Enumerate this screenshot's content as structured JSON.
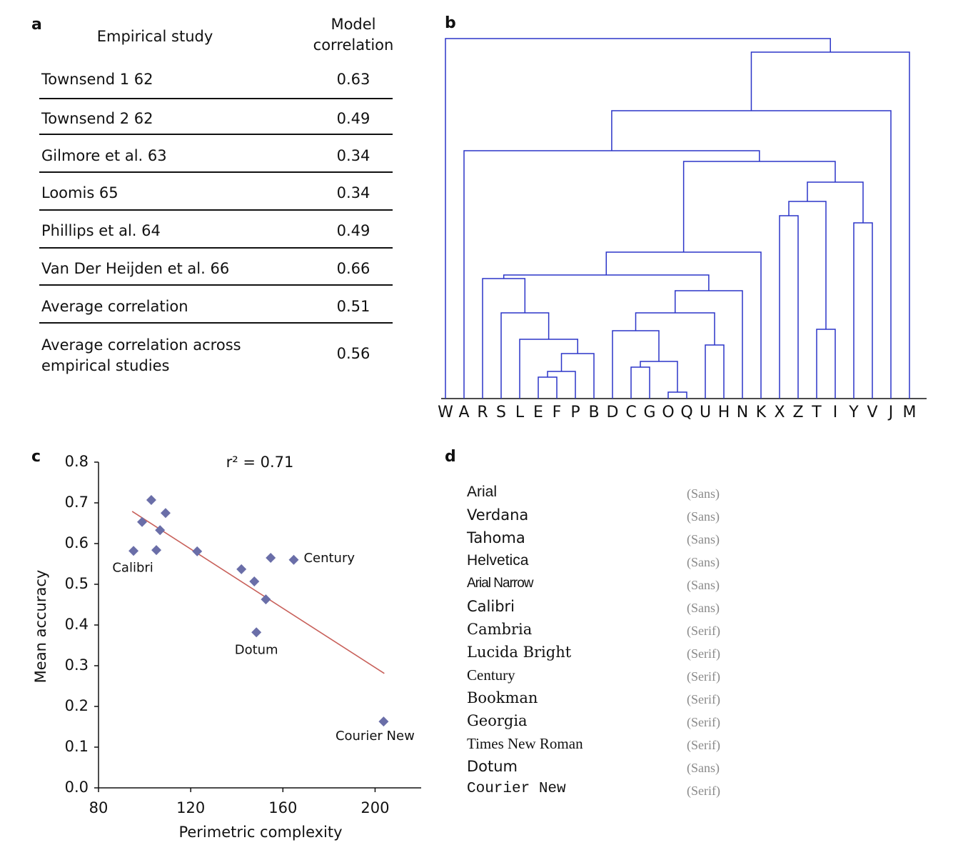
{
  "panel_labels": [
    "a",
    "b",
    "c",
    "d"
  ],
  "table": {
    "header": [
      "Empirical study",
      "Model correlation"
    ],
    "rows": [
      [
        "Townsend 1 62",
        0.63
      ],
      [
        "Townsend 2 62",
        0.49
      ],
      [
        "Gilmore et al. 63",
        0.34
      ],
      [
        "Loomis 65",
        0.34
      ],
      [
        "Phillips et al. 64",
        0.49
      ],
      [
        "Van Der Heijden et al. 66",
        0.66
      ],
      [
        "Average correlation",
        0.51
      ],
      [
        "Average correlation across empirical studies",
        0.56
      ]
    ]
  },
  "dendrogram": {
    "color": "#2b35c8",
    "leaves": [
      "W",
      "A",
      "R",
      "S",
      "L",
      "E",
      "F",
      "P",
      "B",
      "D",
      "C",
      "G",
      "O",
      "Q",
      "U",
      "H",
      "N",
      "K",
      "X",
      "Z",
      "T",
      "I",
      "Y",
      "V",
      "J",
      "M"
    ],
    "merges": [
      {
        "pair": [
          12,
          13
        ],
        "height": 9
      },
      {
        "pair": [
          10,
          11
        ],
        "height": 44
      },
      {
        "pair": [
          27,
          26
        ],
        "height": 52
      },
      {
        "pair": [
          9,
          28
        ],
        "height": 95
      },
      {
        "pair": [
          14,
          15
        ],
        "height": 75
      },
      {
        "pair": [
          29,
          30
        ],
        "height": 120
      },
      {
        "pair": [
          31,
          16
        ],
        "height": 151
      },
      {
        "pair": [
          5,
          6
        ],
        "height": 30
      },
      {
        "pair": [
          33,
          7
        ],
        "height": 38
      },
      {
        "pair": [
          34,
          8
        ],
        "height": 63
      },
      {
        "pair": [
          4,
          35
        ],
        "height": 83
      },
      {
        "pair": [
          3,
          36
        ],
        "height": 120
      },
      {
        "pair": [
          2,
          37
        ],
        "height": 168
      },
      {
        "pair": [
          38,
          32
        ],
        "height": 173
      },
      {
        "pair": [
          39,
          17
        ],
        "height": 205
      },
      {
        "pair": [
          20,
          21
        ],
        "height": 97
      },
      {
        "pair": [
          18,
          19
        ],
        "height": 256
      },
      {
        "pair": [
          42,
          41
        ],
        "height": 276
      },
      {
        "pair": [
          22,
          23
        ],
        "height": 246
      },
      {
        "pair": [
          43,
          44
        ],
        "height": 303
      },
      {
        "pair": [
          40,
          45
        ],
        "height": 332
      },
      {
        "pair": [
          1,
          46
        ],
        "height": 347
      },
      {
        "pair": [
          47,
          24
        ],
        "height": 403
      },
      {
        "pair": [
          48,
          25
        ],
        "height": 485
      },
      {
        "pair": [
          0,
          49
        ],
        "height": 504
      }
    ]
  },
  "chart_data": {
    "type": "scatter",
    "annotation": "r² = 0.71",
    "xlabel": "Perimetric complexity",
    "ylabel": "Mean accuracy",
    "x": [
      95.2,
      102.9,
      98.9,
      109.1,
      106.7,
      105.1,
      122.8,
      142.0,
      154.7,
      147.6,
      164.7,
      152.6,
      148.5,
      203.7
    ],
    "y": [
      0.582,
      0.707,
      0.653,
      0.675,
      0.633,
      0.584,
      0.581,
      0.537,
      0.565,
      0.507,
      0.56,
      0.463,
      0.382,
      0.163
    ],
    "point_labels": [
      "Calibri",
      null,
      null,
      null,
      null,
      null,
      null,
      null,
      null,
      null,
      "Century",
      null,
      "Dotum",
      "Courier New"
    ],
    "color": "#6a6ea8",
    "fit_line": {
      "x": [
        94.6,
        204.0
      ],
      "y": [
        0.679,
        0.281
      ],
      "color": "#c8605a"
    },
    "xlim": [
      80,
      220
    ],
    "ylim": [
      0,
      0.8
    ],
    "xticks": [
      80,
      120,
      160,
      200
    ],
    "yticks": [
      {
        "value": 0,
        "label": "0.0"
      },
      0.1,
      0.2,
      0.3,
      0.4,
      0.5,
      0.6,
      0.7,
      0.8
    ]
  },
  "fonts": {
    "rows": [
      {
        "name": "Arial",
        "class": "(Sans)"
      },
      {
        "name": "Verdana",
        "class": "(Sans)"
      },
      {
        "name": "Tahoma",
        "class": "(Sans)"
      },
      {
        "name": "Helvetica",
        "class": "(Sans)"
      },
      {
        "name": "Arial Narrow",
        "class": "(Sans)"
      },
      {
        "name": "Calibri",
        "class": "(Sans)"
      },
      {
        "name": "Cambria",
        "class": "(Serif)"
      },
      {
        "name": "Lucida Bright",
        "class": "(Serif)"
      },
      {
        "name": "Century",
        "class": "(Serif)"
      },
      {
        "name": "Bookman",
        "class": "(Serif)"
      },
      {
        "name": "Georgia",
        "class": "(Serif)"
      },
      {
        "name": "Times New Roman",
        "class": "(Serif)"
      },
      {
        "name": "Dotum",
        "class": "(Sans)"
      },
      {
        "name": "Courier New",
        "class": "(Serif)"
      }
    ]
  }
}
